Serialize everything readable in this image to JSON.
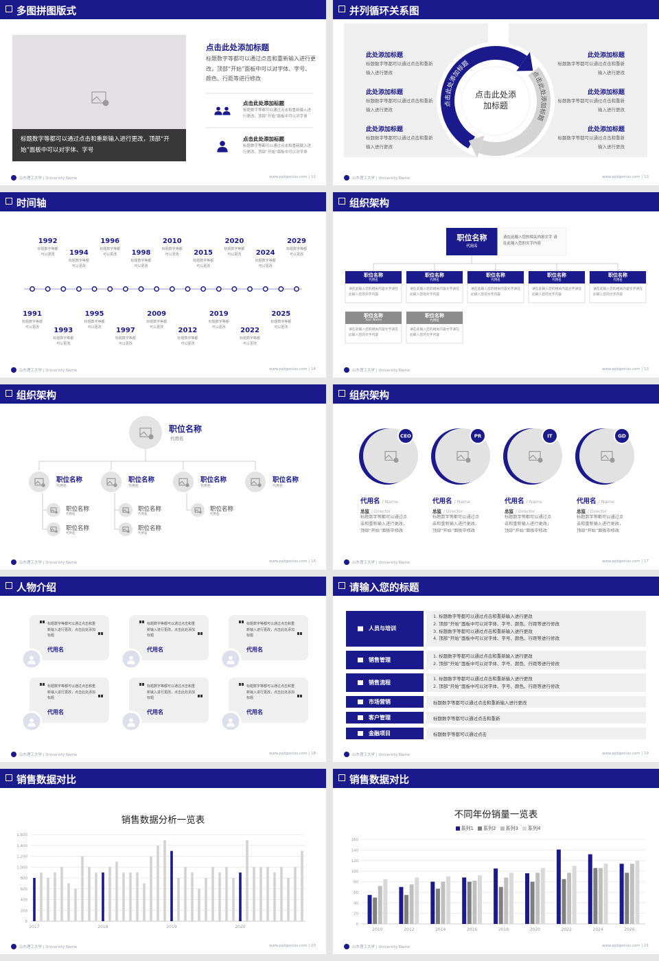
{
  "footer": "山东理工大学 | University Name",
  "slides": [
    {
      "title": "多图拼图版式",
      "page": "www.pptgenius.com | 12",
      "caption": "标题数字等都可以通过点击和重新输入进行更改，顶部“开始”面板中可以对字体、字号",
      "heading": "点击此处添加标题",
      "body": "标题数字等都可以通过点击和重新输入进行更改，顶部“开始”面板中可以对字体、字号、颜色、行距等进行修改",
      "items": [
        {
          "title": "点击此处添加标题",
          "text": "标题数字等都可以通过点击和重新输入进行更改，顶部“开始”面板中可以对字体"
        },
        {
          "title": "点击此处添加标题",
          "text": "标题数字等都可以通过点击和重新输入进行更改，顶部“开始”面板中可以对字体"
        }
      ]
    },
    {
      "title": "并列循环关系图",
      "page": "www.pptgenius.com | 13",
      "center": "点击此处添加标题",
      "arc_left": "点击此处添加标题",
      "arc_right": "点击此处添加标题",
      "left": [
        {
          "title": "此处添加标题",
          "text": "标题数字等都可以通过点击和重新输入进行更改"
        },
        {
          "title": "此处添加标题",
          "text": "标题数字等都可以通过点击和重新输入进行更改"
        },
        {
          "title": "此处添加标题",
          "text": "标题数字等都可以通过点击和重新输入进行更改"
        }
      ],
      "right": [
        {
          "title": "此处添加标题",
          "text": "标题数字等都可以通过点击和重新输入进行更改"
        },
        {
          "title": "此处添加标题",
          "text": "标题数字等都可以通过点击和重新输入进行更改"
        },
        {
          "title": "此处添加标题",
          "text": "标题数字等都可以通过点击和重新输入进行更改"
        }
      ]
    },
    {
      "title": "时间轴",
      "page": "www.pptgenius.com | 14",
      "events": [
        {
          "year": "1991",
          "text": "标题数字等都可以更改"
        },
        {
          "year": "1992",
          "text": "标题数字等都可以更改"
        },
        {
          "year": "1993",
          "text": "标题数字等都可以更改"
        },
        {
          "year": "1994",
          "text": "标题数字等都可以更改"
        },
        {
          "year": "1995",
          "text": "标题数字等都可以更改"
        },
        {
          "year": "1996",
          "text": "标题数字等都可以更改"
        },
        {
          "year": "1997",
          "text": "标题数字等都可以更改"
        },
        {
          "year": "1998",
          "text": "标题数字等都可以更改"
        },
        {
          "year": "2009",
          "text": "标题数字等都可以更改"
        },
        {
          "year": "2010",
          "text": "标题数字等都可以更改"
        },
        {
          "year": "2012",
          "text": "标题数字等都可以更改"
        },
        {
          "year": "2015",
          "text": "标题数字等都可以更改"
        },
        {
          "year": "2019",
          "text": "标题数字等都可以更改"
        },
        {
          "year": "2020",
          "text": "标题数字等都可以更改"
        },
        {
          "year": "2022",
          "text": "标题数字等都可以更改"
        },
        {
          "year": "2024",
          "text": "标题数字等都可以更改"
        },
        {
          "year": "2025",
          "text": "标题数字等都可以更改"
        },
        {
          "year": "2029",
          "text": "标题数字等都可以更改"
        }
      ]
    },
    {
      "title": "组织架构",
      "page": "www.pptgenius.com | 13",
      "head": {
        "title": "职位名称",
        "sub": "代用名",
        "note": "请在此输入您的相关内容文字 请在此输入您的文字内容"
      },
      "boxes": [
        {
          "title": "职位名称",
          "sub": "代用名",
          "text": "请在此输入您的相关内容文字请在此输入您的文字内容",
          "color": "#1a1a8c"
        },
        {
          "title": "职位名称",
          "sub": "代用名",
          "text": "请在此输入您的相关内容文字请在此输入您的文字内容",
          "color": "#1a1a8c"
        },
        {
          "title": "职位名称",
          "sub": "代用名",
          "text": "请在此输入您的相关内容文字请在此输入您的文字内容",
          "color": "#1a1a8c"
        },
        {
          "title": "职位名称",
          "sub": "代用名",
          "text": "请在此输入您的相关内容文字请在此输入您的文字内容",
          "color": "#1a1a8c"
        },
        {
          "title": "职位名称",
          "sub": "代用名",
          "text": "请在此输入您的相关内容文字请在此输入您的文字内容",
          "color": "#1a1a8c"
        },
        {
          "title": "职位名称",
          "sub": "Your Name",
          "text": "请在此输入您的相关内容文字请在此输入您的文字内容",
          "color": "#8c8c8c"
        },
        {
          "title": "职位名称",
          "sub": "代用名",
          "text": "请在此输入您的相关内容文字请在此输入您的文字内容",
          "color": "#8c8c8c"
        }
      ]
    },
    {
      "title": "组织架构",
      "page": "www.pptgenius.com | 16",
      "head": {
        "title": "职位名称",
        "sub": "代用名"
      },
      "nodes": [
        {
          "title": "职位名称",
          "sub": "代用名",
          "children": [
            {
              "title": "职位名称",
              "sub": "代用名"
            },
            {
              "title": "职位名称",
              "sub": "代用名"
            }
          ]
        },
        {
          "title": "职位名称",
          "sub": "代用名",
          "children": [
            {
              "title": "职位名称",
              "sub": "代用名"
            },
            {
              "title": "职位名称",
              "sub": "代用名"
            }
          ]
        },
        {
          "title": "职位名称",
          "sub": "代用名",
          "children": [
            {
              "title": "职位名称",
              "sub": "代用名"
            }
          ]
        },
        {
          "title": "职位名称",
          "sub": "代用名",
          "children": []
        }
      ]
    },
    {
      "title": "组织架构",
      "page": "www.pptgenius.com | 17",
      "people": [
        {
          "badge": "CEO",
          "name": "代用名",
          "name_en": "/ Name",
          "role": "总监",
          "role_en": "/ Director",
          "text": "标题数字等都可以通过点击和重新输入进行更改，顶部“开始”面板中修改"
        },
        {
          "badge": "PR",
          "name": "代用名",
          "name_en": "/ Name",
          "role": "总监",
          "role_en": "/ Director",
          "text": "标题数字等都可以通过点击和重新输入进行更改，顶部“开始”面板中修改"
        },
        {
          "badge": "IT",
          "name": "代用名",
          "name_en": "/ Name",
          "role": "总监",
          "role_en": "/ Director",
          "text": "标题数字等都可以通过点击和重新输入进行更改，顶部“开始”面板中修改"
        },
        {
          "badge": "GD",
          "name": "代用名",
          "name_en": "/ Name",
          "role": "总监",
          "role_en": "/ Director",
          "text": "标题数字等都可以通过点击和重新输入进行更改，顶部“开始”面板中修改"
        }
      ]
    },
    {
      "title": "人物介绍",
      "page": "www.pptgenius.com | 18",
      "cards": [
        {
          "text": "标题数字等都可以通过点击和重新输入进行更改，点击此处添加标题",
          "name": "代用名"
        },
        {
          "text": "标题数字等都可以通过点击和重新输入进行更改，点击此处添加标题",
          "name": "代用名"
        },
        {
          "text": "标题数字等都可以通过点击和重新输入进行更改，点击此处添加标题",
          "name": "代用名"
        },
        {
          "text": "标题数字等都可以通过点击和重新输入进行更改，点击此处添加标题",
          "name": "代用名"
        },
        {
          "text": "标题数字等都可以通过点击和重新输入进行更改，点击此处添加标题",
          "name": "代用名"
        },
        {
          "text": "标题数字等都可以通过点击和重新输入进行更改，点击此处添加标题",
          "name": "代用名"
        }
      ]
    },
    {
      "title": "请输入您的标题",
      "page": "www.pptgenius.com | 19",
      "rows": [
        {
          "label": "人员与培训",
          "items": [
            "标题数字等都可以通过点击和重新输入进行更改",
            "顶部“开始”面板中可以对字体、字号、颜色、行距等进行修改",
            "标题数字等都可以通过点击和重新输入进行更改",
            "顶部“开始”面板中可以对字体、字号、颜色、行距等进行修改"
          ]
        },
        {
          "label": "销售管理",
          "items": [
            "标题数字等都可以通过点击和重新输入进行更改",
            "顶部“开始”面板中可以对字体、字号、颜色、行距等进行修改"
          ]
        },
        {
          "label": "销售流程",
          "items": [
            "标题数字等都可以通过点击和重新输入进行更改",
            "顶部“开始”面板中可以对字体、字号、颜色、行距等进行修改"
          ]
        },
        {
          "label": "市场营销",
          "text": "标题数字等都可以通过点击和重新输入进行更改"
        },
        {
          "label": "客户管理",
          "text": "标题数字等都可以通过点击和重新"
        },
        {
          "label": "金融项目",
          "text": "标题数字等都可以通过点击"
        }
      ]
    },
    {
      "title": "销售数据对比",
      "page": "www.pptgenius.com | 20",
      "chart": {
        "type": "bar",
        "title": "销售数据分析一览表",
        "categories": [
          "2017",
          null,
          null,
          null,
          null,
          null,
          null,
          null,
          null,
          null,
          "2018",
          null,
          null,
          null,
          null,
          null,
          null,
          null,
          null,
          null,
          "2019",
          null,
          null,
          null,
          null,
          null,
          null,
          null,
          null,
          null,
          "2020",
          null,
          null,
          null,
          null,
          null,
          null,
          null,
          null,
          null
        ],
        "values": [
          800,
          900,
          800,
          900,
          1000,
          700,
          600,
          1200,
          1000,
          900,
          900,
          1000,
          1100,
          900,
          900,
          900,
          700,
          1200,
          1400,
          1500,
          1300,
          800,
          1000,
          900,
          600,
          800,
          1000,
          900,
          1000,
          800,
          900,
          1500,
          1000,
          1000,
          1000,
          900,
          1000,
          800,
          1000,
          1300
        ],
        "colors": [
          "#1a1a8c",
          "#d4d4d4",
          "#d4d4d4",
          "#d4d4d4",
          "#d4d4d4",
          "#d4d4d4",
          "#d4d4d4",
          "#d4d4d4",
          "#d4d4d4",
          "#d4d4d4",
          "#1a1a8c",
          "#d4d4d4",
          "#d4d4d4",
          "#d4d4d4",
          "#d4d4d4",
          "#d4d4d4",
          "#d4d4d4",
          "#d4d4d4",
          "#d4d4d4",
          "#d4d4d4",
          "#1a1a8c",
          "#d4d4d4",
          "#d4d4d4",
          "#d4d4d4",
          "#d4d4d4",
          "#d4d4d4",
          "#d4d4d4",
          "#d4d4d4",
          "#d4d4d4",
          "#d4d4d4",
          "#1a1a8c",
          "#d4d4d4",
          "#d4d4d4",
          "#d4d4d4",
          "#d4d4d4",
          "#d4d4d4",
          "#d4d4d4",
          "#d4d4d4",
          "#d4d4d4",
          "#d4d4d4"
        ],
        "ylim": [
          0,
          1600
        ],
        "yticks": [
          0,
          200,
          400,
          600,
          800,
          {
            "value": 1000,
            "label": "1,000"
          },
          {
            "value": 1200,
            "label": "1,200"
          },
          {
            "value": 1400,
            "label": "1,400"
          },
          {
            "value": 1600,
            "label": "1,600"
          }
        ],
        "grid": true
      }
    },
    {
      "title": "销售数据对比",
      "page": "www.pptgenius.com | 21",
      "chart": {
        "type": "bar",
        "title": "不同年份销量一览表",
        "categories": [
          "2010",
          "2012",
          "2014",
          "2016",
          "2018",
          "2020",
          "2022",
          "2024",
          "2026"
        ],
        "series": [
          {
            "name": "系列1",
            "color": "#1a1a8c",
            "values": [
              55,
              70,
              80,
              88,
              105,
              96,
              141,
              132,
              114
            ]
          },
          {
            "name": "系列2",
            "color": "#7f7f7f",
            "values": [
              50,
              55,
              67,
              80,
              70,
              80,
              85,
              106,
              97
            ]
          },
          {
            "name": "系列3",
            "color": "#bfbfbf",
            "values": [
              72,
              75,
              80,
              82,
              88,
              97,
              97,
              106,
              114
            ]
          },
          {
            "name": "系列4",
            "color": "#d9d9d9",
            "values": [
              85,
              88,
              90,
              92,
              97,
              106,
              110,
              114,
              120
            ]
          }
        ],
        "ylim": [
          0,
          160
        ],
        "yticks": [
          0,
          20,
          40,
          60,
          80,
          100,
          120,
          140,
          160
        ],
        "grid": true,
        "legend": "top"
      }
    }
  ]
}
